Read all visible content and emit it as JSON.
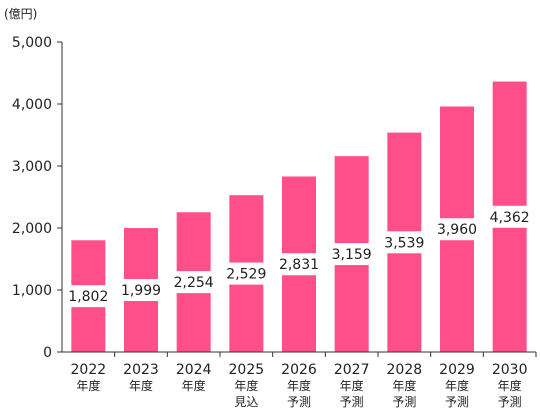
{
  "chart_data": {
    "type": "bar",
    "unit": "(億円)",
    "categories": [
      [
        "2022",
        "年度"
      ],
      [
        "2023",
        "年度"
      ],
      [
        "2024",
        "年度"
      ],
      [
        "2025",
        "年度",
        "見込"
      ],
      [
        "2026",
        "年度",
        "予測"
      ],
      [
        "2027",
        "年度",
        "予測"
      ],
      [
        "2028",
        "年度",
        "予測"
      ],
      [
        "2029",
        "年度",
        "予測"
      ],
      [
        "2030",
        "年度",
        "予測"
      ]
    ],
    "values": [
      1802,
      1999,
      2254,
      2529,
      2831,
      3159,
      3539,
      3960,
      4362
    ],
    "value_labels": [
      "1,802",
      "1,999",
      "2,254",
      "2,529",
      "2,831",
      "3,159",
      "3,539",
      "3,960",
      "4,362"
    ],
    "y_ticks": [
      0,
      1000,
      2000,
      3000,
      4000,
      5000
    ],
    "y_tick_labels": [
      "0",
      "1,000",
      "2,000",
      "3,000",
      "4,000",
      "5,000"
    ],
    "ylim": [
      0,
      5000
    ],
    "grid": false,
    "legend": "none",
    "bar_color": "#ff4f8b",
    "axis_color": "#333333"
  }
}
